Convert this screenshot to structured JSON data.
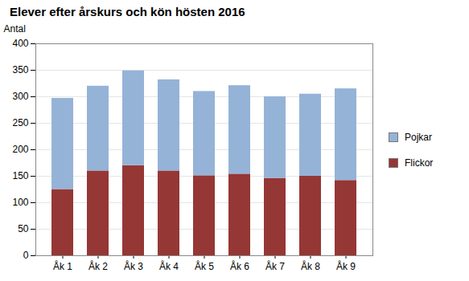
{
  "chart_data": {
    "type": "bar",
    "title": "Elever efter årskurs och kön hösten 2016",
    "y_label": "Antal",
    "categories": [
      "Åk 1",
      "Åk 2",
      "Åk 3",
      "Åk 4",
      "Åk 5",
      "Åk 6",
      "Åk 7",
      "Åk 8",
      "Åk 9"
    ],
    "series": [
      {
        "name": "Flickor",
        "color": "#953735",
        "values": [
          125,
          160,
          170,
          160,
          151,
          154,
          146,
          150,
          142
        ]
      },
      {
        "name": "Pojkar",
        "color": "#95b3d7",
        "values": [
          172,
          160,
          179,
          172,
          159,
          167,
          154,
          155,
          173
        ]
      }
    ],
    "stacked": true,
    "ylim": [
      0,
      400
    ],
    "yticks": [
      0,
      50,
      100,
      150,
      200,
      250,
      300,
      350,
      400
    ],
    "grid": true,
    "legend": "right"
  }
}
